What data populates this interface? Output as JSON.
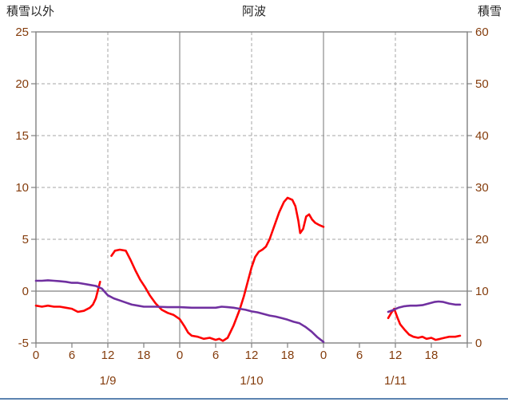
{
  "header": {
    "left_axis_title": "積雪以外",
    "chart_title": "阿波",
    "right_axis_title": "積雪"
  },
  "chart_data": {
    "type": "line",
    "title": "阿波",
    "grid": true,
    "legend": "none",
    "colors": {
      "axis_text": "#843c0c",
      "title_text": "#262626",
      "frame": "#808080",
      "grid_dashed": "#a6a6a6",
      "grid_solid": "#8c8c8c",
      "zero_line": "#808080",
      "red_series": "#ff0000",
      "purple_series": "#7030a0"
    },
    "left_axis": {
      "label": "積雪以外",
      "min": -5,
      "max": 25,
      "ticks": [
        25,
        20,
        15,
        10,
        5,
        0,
        -5
      ]
    },
    "right_axis": {
      "label": "積雪",
      "min": 0,
      "max": 60,
      "ticks": [
        60,
        50,
        40,
        30,
        20,
        10,
        0
      ]
    },
    "x_axis": {
      "hours_total": 72,
      "tick_step": 6,
      "hour_tick_labels": [
        "0",
        "6",
        "12",
        "18",
        "0",
        "6",
        "12",
        "18",
        "0",
        "6",
        "12",
        "18"
      ],
      "day_labels": [
        {
          "label": "1/9",
          "center_hour": 12
        },
        {
          "label": "1/10",
          "center_hour": 36
        },
        {
          "label": "1/11",
          "center_hour": 60
        }
      ],
      "dashed_gridline_hours": [
        12,
        36,
        60
      ],
      "solid_gridline_hours": [
        24,
        48
      ]
    },
    "series": [
      {
        "id": "non-snow-line",
        "name": "積雪以外",
        "axis": "left",
        "color": "#ff0000",
        "segments": [
          [
            [
              0,
              -1.4
            ],
            [
              1,
              -1.5
            ],
            [
              2,
              -1.4
            ],
            [
              3,
              -1.5
            ],
            [
              4,
              -1.5
            ],
            [
              5,
              -1.6
            ],
            [
              6,
              -1.7
            ],
            [
              7,
              -2
            ],
            [
              8,
              -1.9
            ],
            [
              9,
              -1.6
            ],
            [
              9.5,
              -1.3
            ],
            [
              10,
              -0.7
            ],
            [
              10.7,
              0.9
            ]
          ],
          [
            [
              12.6,
              3.4
            ],
            [
              13.2,
              3.9
            ],
            [
              14,
              4
            ],
            [
              15,
              3.9
            ],
            [
              15.8,
              3
            ],
            [
              16.6,
              2
            ],
            [
              17.4,
              1.1
            ],
            [
              18.2,
              0.4
            ],
            [
              19,
              -0.4
            ],
            [
              20,
              -1.2
            ],
            [
              21,
              -1.8
            ],
            [
              22,
              -2.1
            ],
            [
              23,
              -2.3
            ],
            [
              24,
              -2.7
            ],
            [
              24.8,
              -3.4
            ],
            [
              25.4,
              -4
            ],
            [
              26,
              -4.3
            ],
            [
              27,
              -4.4
            ],
            [
              28,
              -4.6
            ],
            [
              29,
              -4.5
            ],
            [
              30,
              -4.7
            ],
            [
              30.6,
              -4.6
            ],
            [
              31.2,
              -4.8
            ],
            [
              32,
              -4.5
            ],
            [
              33,
              -3.3
            ],
            [
              34,
              -1.8
            ],
            [
              34.7,
              -0.5
            ],
            [
              35.3,
              0.8
            ],
            [
              36,
              2.3
            ],
            [
              36.6,
              3.3
            ],
            [
              37.2,
              3.8
            ],
            [
              37.8,
              4
            ],
            [
              38.4,
              4.3
            ],
            [
              39,
              5
            ],
            [
              39.8,
              6.3
            ],
            [
              40.6,
              7.6
            ],
            [
              41.4,
              8.6
            ],
            [
              42,
              9
            ],
            [
              42.8,
              8.8
            ],
            [
              43.3,
              8.2
            ],
            [
              43.8,
              6.8
            ],
            [
              44.1,
              5.6
            ],
            [
              44.6,
              6
            ],
            [
              45.1,
              7.2
            ],
            [
              45.6,
              7.4
            ],
            [
              46.1,
              6.9
            ],
            [
              46.6,
              6.6
            ],
            [
              47.2,
              6.4
            ],
            [
              48,
              6.2
            ]
          ],
          [
            [
              58.8,
              -2.6
            ],
            [
              59.3,
              -2.1
            ],
            [
              59.8,
              -1.7
            ],
            [
              60.3,
              -2.5
            ],
            [
              60.8,
              -3.2
            ],
            [
              61.5,
              -3.7
            ],
            [
              62.3,
              -4.2
            ],
            [
              63,
              -4.4
            ],
            [
              63.8,
              -4.5
            ],
            [
              64.5,
              -4.4
            ],
            [
              65.2,
              -4.6
            ],
            [
              66,
              -4.5
            ],
            [
              66.7,
              -4.7
            ],
            [
              67.5,
              -4.6
            ],
            [
              68.2,
              -4.5
            ],
            [
              69,
              -4.4
            ],
            [
              70,
              -4.4
            ],
            [
              70.8,
              -4.3
            ]
          ]
        ]
      },
      {
        "id": "snow-depth-line",
        "name": "積雪",
        "axis": "right",
        "color": "#7030a0",
        "segments": [
          [
            [
              0,
              12
            ],
            [
              1,
              12
            ],
            [
              2,
              12.1
            ],
            [
              3,
              12
            ],
            [
              4,
              11.9
            ],
            [
              5,
              11.8
            ],
            [
              6,
              11.6
            ],
            [
              7,
              11.6
            ],
            [
              8,
              11.4
            ],
            [
              9,
              11.2
            ],
            [
              10,
              11
            ],
            [
              11,
              10.5
            ],
            [
              12,
              9.2
            ],
            [
              13,
              8.6
            ],
            [
              14,
              8.2
            ],
            [
              15,
              7.8
            ],
            [
              16,
              7.4
            ],
            [
              17,
              7.2
            ],
            [
              18,
              7
            ],
            [
              20,
              7
            ],
            [
              22,
              6.9
            ],
            [
              24,
              6.9
            ],
            [
              26,
              6.8
            ],
            [
              28,
              6.8
            ],
            [
              30,
              6.8
            ],
            [
              31,
              7
            ],
            [
              32,
              6.9
            ],
            [
              33,
              6.8
            ],
            [
              34,
              6.6
            ],
            [
              35,
              6.4
            ],
            [
              36,
              6.1
            ],
            [
              37,
              5.9
            ],
            [
              38,
              5.6
            ],
            [
              39,
              5.3
            ],
            [
              40,
              5.1
            ],
            [
              41,
              4.8
            ],
            [
              42,
              4.5
            ],
            [
              43,
              4.1
            ],
            [
              44,
              3.8
            ],
            [
              45,
              3.1
            ],
            [
              46,
              2.2
            ],
            [
              47,
              1.1
            ],
            [
              48,
              0.2
            ]
          ],
          [
            [
              58.8,
              6
            ],
            [
              59.5,
              6.3
            ],
            [
              60.5,
              6.8
            ],
            [
              61.5,
              7.1
            ],
            [
              62.5,
              7.2
            ],
            [
              63.5,
              7.2
            ],
            [
              64.5,
              7.3
            ],
            [
              65.5,
              7.6
            ],
            [
              66.5,
              7.9
            ],
            [
              67.2,
              8
            ],
            [
              68,
              7.9
            ],
            [
              69,
              7.6
            ],
            [
              70,
              7.4
            ],
            [
              70.8,
              7.4
            ]
          ]
        ]
      }
    ]
  }
}
